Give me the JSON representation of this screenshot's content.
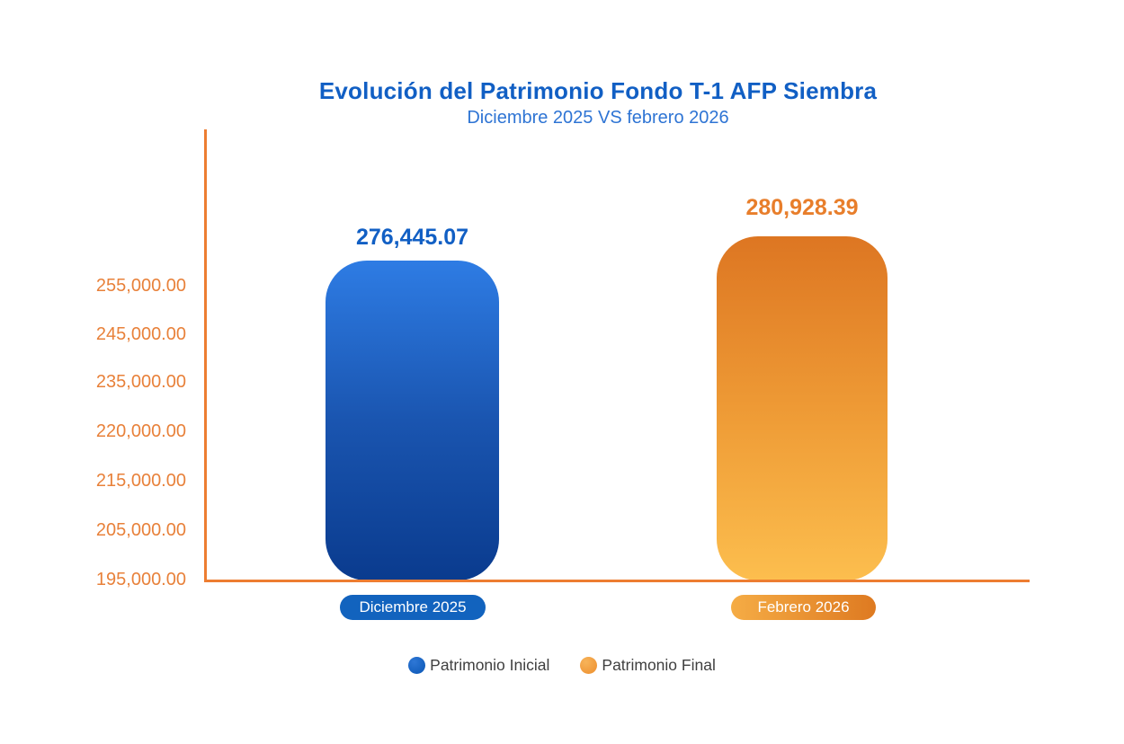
{
  "chart_data": {
    "type": "bar",
    "title": "Evolución del Patrimonio Fondo T-1 AFP Siembra",
    "subtitle": "Diciembre 2025 VS febrero 2026",
    "categories": [
      "Diciembre 2025",
      "Febrero 2026"
    ],
    "values": [
      276445.07,
      280928.39
    ],
    "bars": [
      {
        "category": "Diciembre 2025",
        "series": "Patrimonio Inicial",
        "value": 276445.07,
        "value_label": "276,445.07",
        "color_top": "#2E7CE4",
        "color_bottom": "#0A3B8E"
      },
      {
        "category": "Febrero 2026",
        "series": "Patrimonio Final",
        "value": 280928.39,
        "value_label": "280,928.39",
        "color_top": "#DD7622",
        "color_bottom": "#FCBE4E"
      }
    ],
    "y_axis_ticks": [
      "255,000.00",
      "245,000.00",
      "235,000.00",
      "220,000.00",
      "215,000.00",
      "205,000.00",
      "195,000.00"
    ],
    "ylim": [
      195000,
      265000
    ],
    "grid": false,
    "legend_position": "bottom",
    "legend": [
      {
        "label": "Patrimonio Inicial",
        "color": "#1560BE"
      },
      {
        "label": "Patrimonio Final",
        "color": "#F0993A"
      }
    ],
    "colors": {
      "title": "#115FC4",
      "subtitle": "#2E74D4",
      "axis_line": "#ED7D31",
      "tick_labels": "#E8813A",
      "value_label_blue": "#115FC4",
      "value_label_orange": "#E87E2B",
      "pill_blue": "#1263BE",
      "pill_orange_left": "#F5AC45",
      "pill_orange_right": "#DE7A21",
      "legend_text": "#3F3F3F",
      "background": "#FFFFFF"
    }
  }
}
